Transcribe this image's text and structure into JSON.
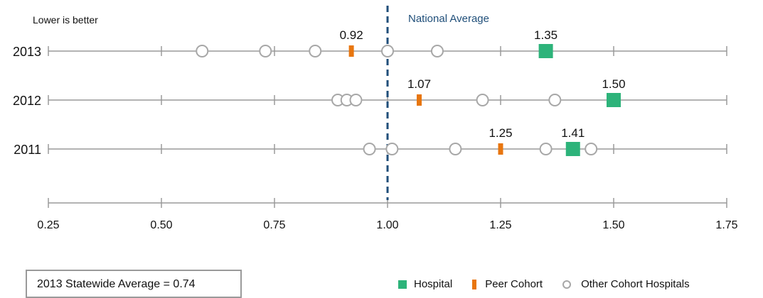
{
  "note": "Lower is better",
  "national_label": "National Average",
  "statewide_label": "2013 Statewide Average =",
  "statewide_value": "0.74",
  "legend": [
    {
      "label": "Hospital",
      "color": "#2db37a"
    },
    {
      "label": "Peer Cohort",
      "color": "#e8760f"
    },
    {
      "label": "Other Cohort Hospitals",
      "color": "#a7a7a7"
    }
  ],
  "chart_data": {
    "type": "scatter",
    "xlim": [
      0.25,
      1.75
    ],
    "xticks": [
      "0.25",
      "0.50",
      "0.75",
      "1.00",
      "1.25",
      "1.50",
      "1.75"
    ],
    "national_average": 1.0,
    "rows": [
      {
        "year": "2013",
        "hospital": 1.35,
        "hospital_label": "1.35",
        "peer": 0.92,
        "peer_label": "0.92",
        "others": [
          0.59,
          0.73,
          0.84,
          1.0,
          1.11
        ]
      },
      {
        "year": "2012",
        "hospital": 1.5,
        "hospital_label": "1.50",
        "peer": 1.07,
        "peer_label": "1.07",
        "others": [
          0.89,
          0.91,
          0.93,
          1.21,
          1.37
        ]
      },
      {
        "year": "2011",
        "hospital": 1.41,
        "hospital_label": "1.41",
        "peer": 1.25,
        "peer_label": "1.25",
        "others": [
          0.96,
          1.01,
          1.15,
          1.35,
          1.45
        ]
      }
    ],
    "colors": {
      "hospital": "#2db37a",
      "peer": "#e8760f",
      "other": "#a7a7a7",
      "axis": "#9a9a9a",
      "national": "#1f4e79"
    }
  }
}
